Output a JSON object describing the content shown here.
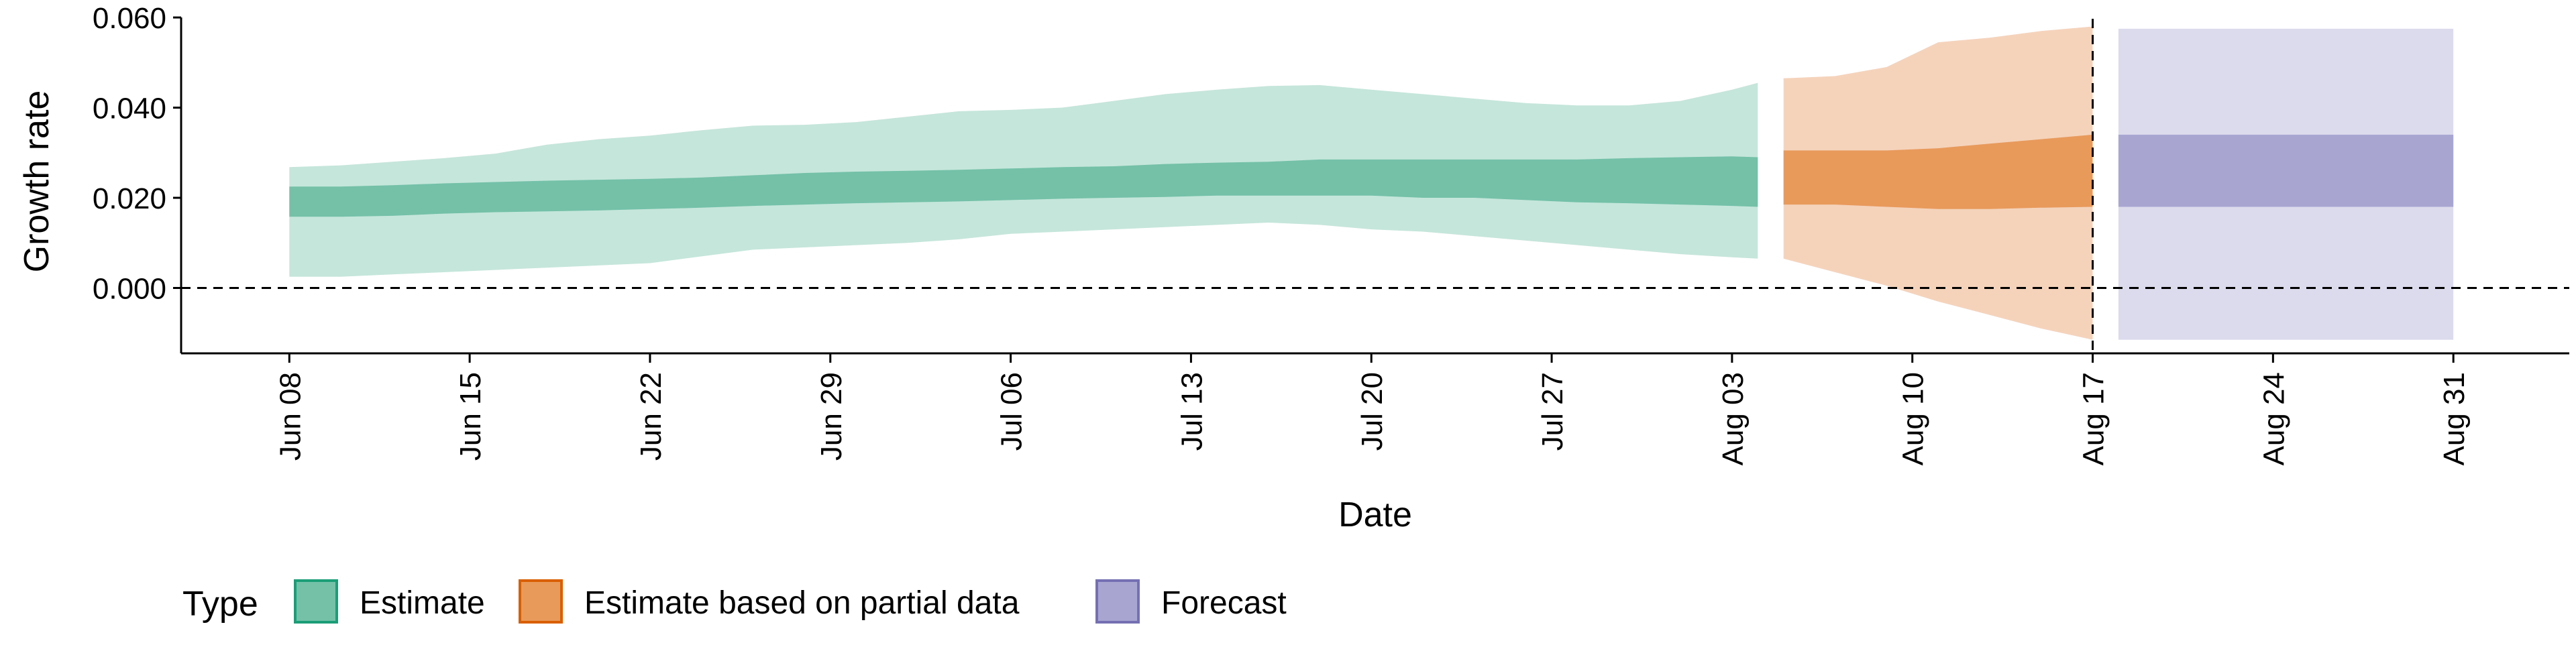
{
  "chart_data": {
    "type": "area",
    "xlabel": "Date",
    "ylabel": "Growth rate",
    "yticks": [
      {
        "value": 0.0,
        "label": "0.000"
      },
      {
        "value": 0.02,
        "label": "0.020"
      },
      {
        "value": 0.04,
        "label": "0.040"
      },
      {
        "value": 0.06,
        "label": "0.060"
      }
    ],
    "xticks": [
      {
        "day": 0,
        "label": "Jun 08"
      },
      {
        "day": 7,
        "label": "Jun 15"
      },
      {
        "day": 14,
        "label": "Jun 22"
      },
      {
        "day": 21,
        "label": "Jun 29"
      },
      {
        "day": 28,
        "label": "Jul 06"
      },
      {
        "day": 35,
        "label": "Jul 13"
      },
      {
        "day": 42,
        "label": "Jul 20"
      },
      {
        "day": 49,
        "label": "Jul 27"
      },
      {
        "day": 56,
        "label": "Aug 03"
      },
      {
        "day": 63,
        "label": "Aug 10"
      },
      {
        "day": 70,
        "label": "Aug 17"
      },
      {
        "day": 77,
        "label": "Aug 24"
      },
      {
        "day": 84,
        "label": "Aug 31"
      }
    ],
    "x_range_days": [
      -4.2,
      88.5
    ],
    "ylim": [
      -0.0145,
      0.0612
    ],
    "reference_lines": {
      "horizontal_y": 0,
      "vertical_day": 70
    },
    "legend": {
      "title": "Type",
      "position": "bottom-left",
      "items": [
        {
          "label": "Estimate",
          "color": "#1B9E77",
          "fill": "#74C1A8"
        },
        {
          "label": "Estimate based on partial data",
          "color": "#D95F02",
          "fill": "#E89A5B"
        },
        {
          "label": "Forecast",
          "color": "#7570B3",
          "fill": "#A8A6D1"
        }
      ]
    },
    "series": [
      {
        "name": "Estimate",
        "color_outer": "#C5E6DB",
        "color_inner": "#74C1A8",
        "points": [
          {
            "x": "Jun 08",
            "day": 0,
            "lo90": 0.0025,
            "lo50": 0.0158,
            "hi50": 0.0225,
            "hi90": 0.0268
          },
          {
            "x": "Jun 10",
            "day": 2,
            "lo90": 0.0025,
            "lo50": 0.0158,
            "hi50": 0.0225,
            "hi90": 0.0272
          },
          {
            "x": "Jun 12",
            "day": 4,
            "lo90": 0.003,
            "lo50": 0.016,
            "hi50": 0.0228,
            "hi90": 0.028
          },
          {
            "x": "Jun 14",
            "day": 6,
            "lo90": 0.0035,
            "lo50": 0.0165,
            "hi50": 0.0232,
            "hi90": 0.0288
          },
          {
            "x": "Jun 16",
            "day": 8,
            "lo90": 0.004,
            "lo50": 0.0168,
            "hi50": 0.0235,
            "hi90": 0.0298
          },
          {
            "x": "Jun 18",
            "day": 10,
            "lo90": 0.0045,
            "lo50": 0.017,
            "hi50": 0.0238,
            "hi90": 0.0318
          },
          {
            "x": "Jun 20",
            "day": 12,
            "lo90": 0.005,
            "lo50": 0.0172,
            "hi50": 0.024,
            "hi90": 0.033
          },
          {
            "x": "Jun 22",
            "day": 14,
            "lo90": 0.0055,
            "lo50": 0.0175,
            "hi50": 0.0242,
            "hi90": 0.0338
          },
          {
            "x": "Jun 24",
            "day": 16,
            "lo90": 0.007,
            "lo50": 0.0178,
            "hi50": 0.0245,
            "hi90": 0.035
          },
          {
            "x": "Jun 26",
            "day": 18,
            "lo90": 0.0085,
            "lo50": 0.0182,
            "hi50": 0.025,
            "hi90": 0.036
          },
          {
            "x": "Jun 28",
            "day": 20,
            "lo90": 0.009,
            "lo50": 0.0185,
            "hi50": 0.0255,
            "hi90": 0.0362
          },
          {
            "x": "Jun 30",
            "day": 22,
            "lo90": 0.0095,
            "lo50": 0.0188,
            "hi50": 0.0258,
            "hi90": 0.0368
          },
          {
            "x": "Jul 02",
            "day": 24,
            "lo90": 0.01,
            "lo50": 0.019,
            "hi50": 0.026,
            "hi90": 0.038
          },
          {
            "x": "Jul 04",
            "day": 26,
            "lo90": 0.0108,
            "lo50": 0.0192,
            "hi50": 0.0262,
            "hi90": 0.0392
          },
          {
            "x": "Jul 06",
            "day": 28,
            "lo90": 0.012,
            "lo50": 0.0195,
            "hi50": 0.0265,
            "hi90": 0.0395
          },
          {
            "x": "Jul 08",
            "day": 30,
            "lo90": 0.0125,
            "lo50": 0.0198,
            "hi50": 0.0268,
            "hi90": 0.04
          },
          {
            "x": "Jul 10",
            "day": 32,
            "lo90": 0.013,
            "lo50": 0.02,
            "hi50": 0.027,
            "hi90": 0.0415
          },
          {
            "x": "Jul 12",
            "day": 34,
            "lo90": 0.0135,
            "lo50": 0.0202,
            "hi50": 0.0275,
            "hi90": 0.043
          },
          {
            "x": "Jul 14",
            "day": 36,
            "lo90": 0.014,
            "lo50": 0.0205,
            "hi50": 0.0278,
            "hi90": 0.044
          },
          {
            "x": "Jul 16",
            "day": 38,
            "lo90": 0.0145,
            "lo50": 0.0205,
            "hi50": 0.028,
            "hi90": 0.0448
          },
          {
            "x": "Jul 18",
            "day": 40,
            "lo90": 0.014,
            "lo50": 0.0205,
            "hi50": 0.0285,
            "hi90": 0.045
          },
          {
            "x": "Jul 20",
            "day": 42,
            "lo90": 0.013,
            "lo50": 0.0205,
            "hi50": 0.0285,
            "hi90": 0.044
          },
          {
            "x": "Jul 22",
            "day": 44,
            "lo90": 0.0125,
            "lo50": 0.02,
            "hi50": 0.0285,
            "hi90": 0.043
          },
          {
            "x": "Jul 24",
            "day": 46,
            "lo90": 0.0115,
            "lo50": 0.02,
            "hi50": 0.0285,
            "hi90": 0.042
          },
          {
            "x": "Jul 26",
            "day": 48,
            "lo90": 0.0105,
            "lo50": 0.0195,
            "hi50": 0.0285,
            "hi90": 0.041
          },
          {
            "x": "Jul 28",
            "day": 50,
            "lo90": 0.0095,
            "lo50": 0.019,
            "hi50": 0.0285,
            "hi90": 0.0405
          },
          {
            "x": "Jul 30",
            "day": 52,
            "lo90": 0.0085,
            "lo50": 0.0188,
            "hi50": 0.0288,
            "hi90": 0.0405
          },
          {
            "x": "Aug 01",
            "day": 54,
            "lo90": 0.0075,
            "lo50": 0.0185,
            "hi50": 0.029,
            "hi90": 0.0415
          },
          {
            "x": "Aug 03",
            "day": 56,
            "lo90": 0.0068,
            "lo50": 0.0182,
            "hi50": 0.0292,
            "hi90": 0.044
          },
          {
            "x": "Aug 04",
            "day": 57,
            "lo90": 0.0065,
            "lo50": 0.018,
            "hi50": 0.029,
            "hi90": 0.0455
          }
        ]
      },
      {
        "name": "Estimate based on partial data",
        "color_outer": "#F5D3BB",
        "color_inner": "#E89A5B",
        "points": [
          {
            "x": "Aug 05",
            "day": 58,
            "lo90": 0.0065,
            "lo50": 0.0185,
            "hi50": 0.0305,
            "hi90": 0.0465
          },
          {
            "x": "Aug 07",
            "day": 60,
            "lo90": 0.0035,
            "lo50": 0.0185,
            "hi50": 0.0305,
            "hi90": 0.047
          },
          {
            "x": "Aug 09",
            "day": 62,
            "lo90": 0.0005,
            "lo50": 0.018,
            "hi50": 0.0305,
            "hi90": 0.049
          },
          {
            "x": "Aug 11",
            "day": 64,
            "lo90": -0.003,
            "lo50": 0.0175,
            "hi50": 0.031,
            "hi90": 0.0545
          },
          {
            "x": "Aug 13",
            "day": 66,
            "lo90": -0.006,
            "lo50": 0.0175,
            "hi50": 0.032,
            "hi90": 0.0555
          },
          {
            "x": "Aug 15",
            "day": 68,
            "lo90": -0.009,
            "lo50": 0.0178,
            "hi50": 0.033,
            "hi90": 0.057
          },
          {
            "x": "Aug 17",
            "day": 70,
            "lo90": -0.0115,
            "lo50": 0.018,
            "hi50": 0.034,
            "hi90": 0.058
          }
        ]
      },
      {
        "name": "Forecast",
        "color_outer": "#DCDBED",
        "color_inner": "#A8A6D1",
        "points": [
          {
            "x": "Aug 18",
            "day": 71,
            "lo90": -0.0115,
            "lo50": 0.018,
            "hi50": 0.034,
            "hi90": 0.0575
          },
          {
            "x": "Aug 31",
            "day": 84,
            "lo90": -0.0115,
            "lo50": 0.018,
            "hi50": 0.034,
            "hi90": 0.0575
          }
        ]
      }
    ]
  }
}
